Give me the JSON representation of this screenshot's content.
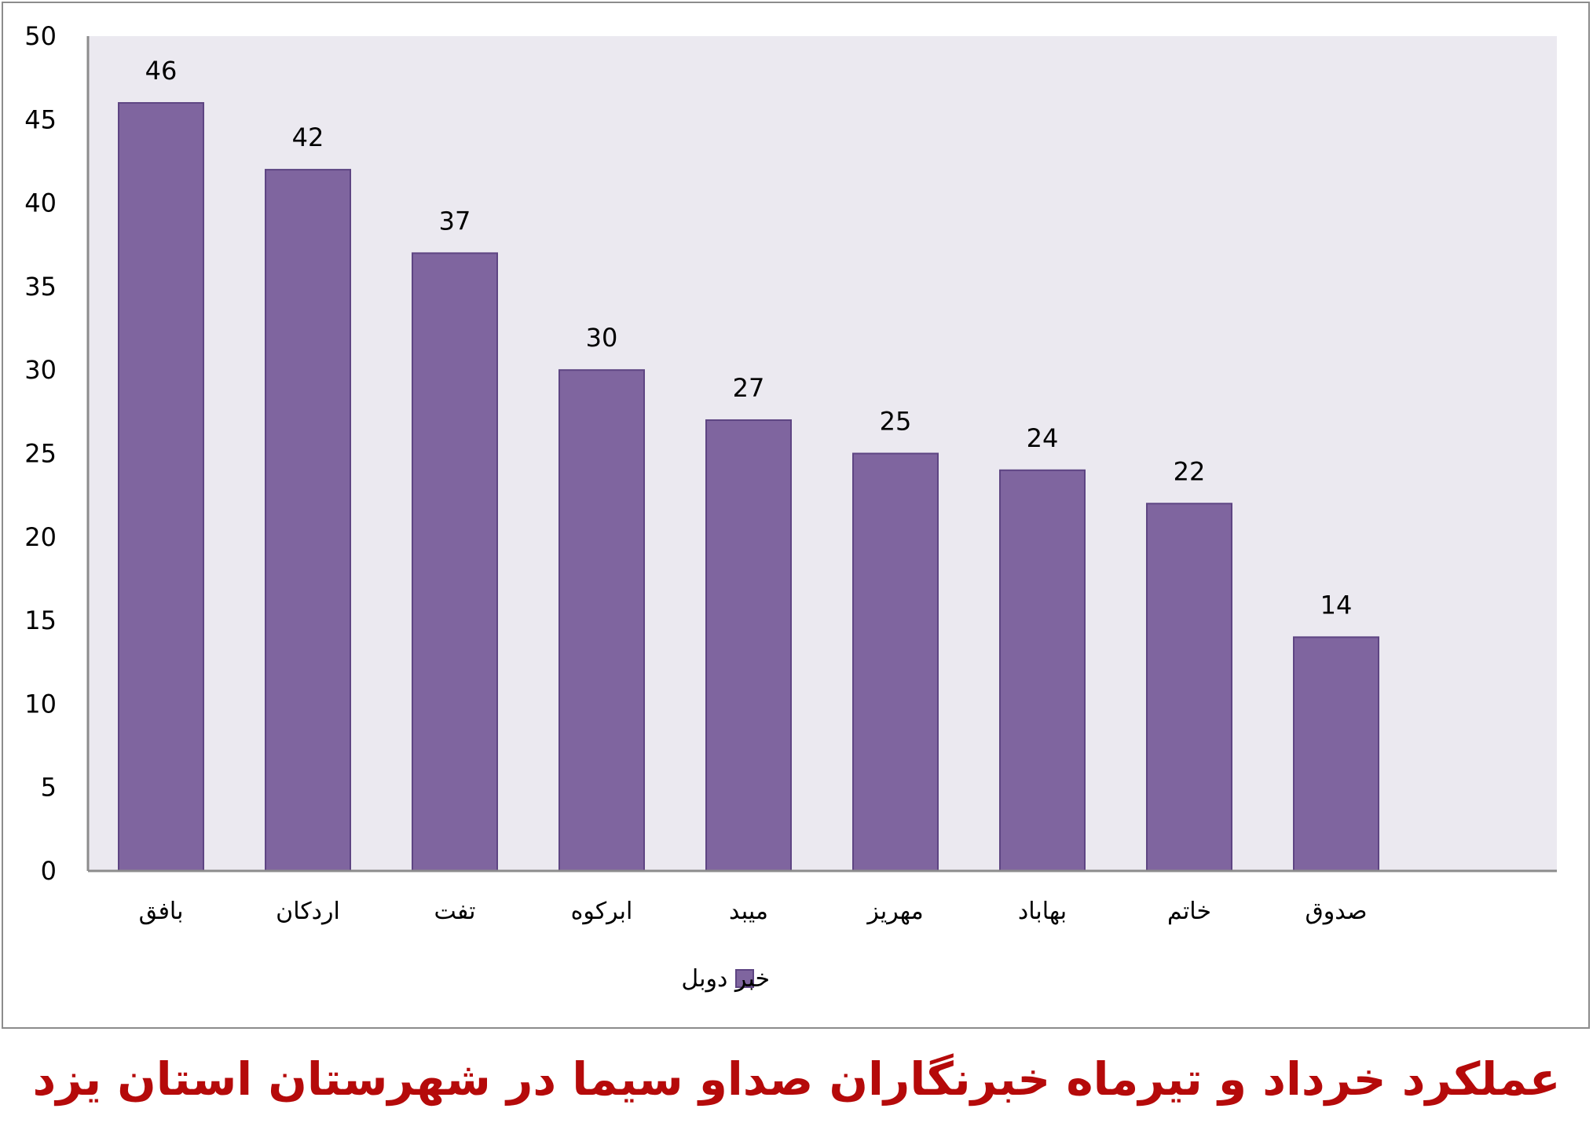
{
  "chart_data": {
    "type": "bar",
    "title": "عملکرد خرداد و تیرماه خبرنگاران صداو سیما در شهرستان استان یزد",
    "categories": [
      "بافق",
      "اردکان",
      "تفت",
      "ابرکوه",
      "میبد",
      "مهریز",
      "بهاباد",
      "خاتم",
      "صدوق"
    ],
    "series": [
      {
        "name": "خبر دوبل",
        "values": [
          46,
          42,
          37,
          30,
          27,
          25,
          24,
          22,
          14
        ]
      }
    ],
    "xlabel": "",
    "ylabel": "",
    "ylim": [
      0,
      50
    ],
    "yticks": [
      0,
      5,
      10,
      15,
      20,
      25,
      30,
      35,
      40,
      45,
      50
    ],
    "grid": false,
    "legend_position": "bottom",
    "data_labels": true,
    "colors": {
      "bar": "#7f659f",
      "bar_border": "#5e4583",
      "plot_background": "#ebe9f0",
      "axis": "#8c8c8c",
      "title": "#b50a0a"
    }
  }
}
